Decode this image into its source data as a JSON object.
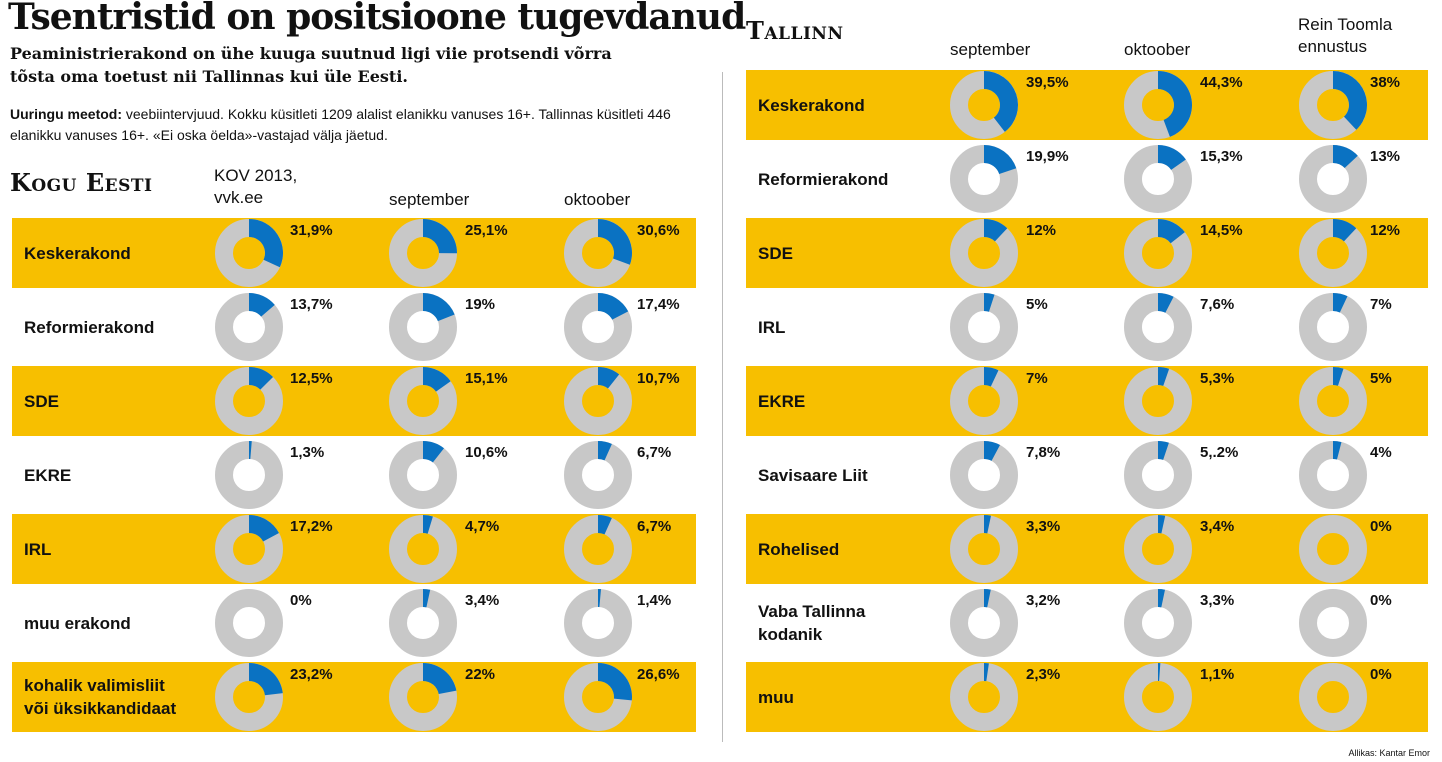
{
  "title": "Tsentristid on positsioone tugevdanud",
  "subtitle": "Peaministrierakond on ühe kuuga suutnud ligi viie protsendi võrra tõsta oma toetust nii Tallinnas kui üle Eesti.",
  "method_label": "Uuringu meetod:",
  "method_text": " veebiintervjuud. Kokku küsitleti 1209 alalist elanikku vanuses 16+. Tallinnas küsitleti 446 elanikku vanuses 16+. «Ei oska öelda»-vastajad välja jäetud.",
  "source": "Allikas: Kantar Emor",
  "colors": {
    "highlight": "#f7bf00",
    "share": "#0a72c2",
    "rest": "#c8c8c8"
  },
  "chart_data": [
    {
      "type": "pie",
      "title": "Kogu Eesti",
      "columns": [
        "KOV 2013,\nvvk.ee",
        "september",
        "oktoober"
      ],
      "rows": [
        {
          "party": "Keskerakond",
          "labels": [
            "31,9%",
            "25,1%",
            "30,6%"
          ],
          "values": [
            31.9,
            25.1,
            30.6
          ]
        },
        {
          "party": "Reformierakond",
          "labels": [
            "13,7%",
            "19%",
            "17,4%"
          ],
          "values": [
            13.7,
            19,
            17.4
          ]
        },
        {
          "party": "SDE",
          "labels": [
            "12,5%",
            "15,1%",
            "10,7%"
          ],
          "values": [
            12.5,
            15.1,
            10.7
          ]
        },
        {
          "party": "EKRE",
          "labels": [
            "1,3%",
            "10,6%",
            "6,7%"
          ],
          "values": [
            1.3,
            10.6,
            6.7
          ]
        },
        {
          "party": "IRL",
          "labels": [
            "17,2%",
            "4,7%",
            "6,7%"
          ],
          "values": [
            17.2,
            4.7,
            6.7
          ]
        },
        {
          "party": "muu erakond",
          "labels": [
            "0%",
            "3,4%",
            "1,4%"
          ],
          "values": [
            0,
            3.4,
            1.4
          ]
        },
        {
          "party": "kohalik valimisliit\nvõi üksikkandidaat",
          "labels": [
            "23,2%",
            "22%",
            "26,6%"
          ],
          "values": [
            23.2,
            22,
            26.6
          ]
        }
      ]
    },
    {
      "type": "pie",
      "title": "Tallinn",
      "columns": [
        "september",
        "oktoober",
        "Rein Toomla\nennustus"
      ],
      "rows": [
        {
          "party": "Keskerakond",
          "labels": [
            "39,5%",
            "44,3%",
            "38%"
          ],
          "values": [
            39.5,
            44.3,
            38
          ]
        },
        {
          "party": "Reformierakond",
          "labels": [
            "19,9%",
            "15,3%",
            "13%"
          ],
          "values": [
            19.9,
            15.3,
            13
          ]
        },
        {
          "party": "SDE",
          "labels": [
            "12%",
            "14,5%",
            "12%"
          ],
          "values": [
            12,
            14.5,
            12
          ]
        },
        {
          "party": "IRL",
          "labels": [
            "5%",
            "7,6%",
            "7%"
          ],
          "values": [
            5,
            7.6,
            7
          ]
        },
        {
          "party": "EKRE",
          "labels": [
            "7%",
            "5,3%",
            "5%"
          ],
          "values": [
            7,
            5.3,
            5
          ]
        },
        {
          "party": "Savisaare Liit",
          "labels": [
            "7,8%",
            "5,.2%",
            "4%"
          ],
          "values": [
            7.8,
            5.2,
            4
          ]
        },
        {
          "party": "Rohelised",
          "labels": [
            "3,3%",
            "3,4%",
            "0%"
          ],
          "values": [
            3.3,
            3.4,
            0
          ]
        },
        {
          "party": "Vaba Tallinna\nkodanik",
          "labels": [
            "3,2%",
            "3,3%",
            "0%"
          ],
          "values": [
            3.2,
            3.3,
            0
          ]
        },
        {
          "party": "muu",
          "labels": [
            "2,3%",
            "1,1%",
            "0%"
          ],
          "values": [
            2.3,
            1.1,
            0
          ]
        }
      ]
    }
  ]
}
